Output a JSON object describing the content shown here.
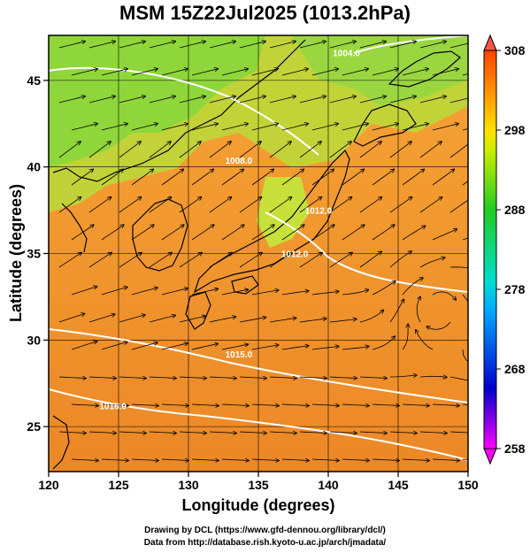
{
  "title": "MSM 15Z22Jul2025 (1013.2hPa)",
  "axes": {
    "xlabel": "Longitude (degrees)",
    "ylabel": "Latitude  (degrees)",
    "xlim": [
      120,
      150
    ],
    "ylim": [
      22.4,
      47.6
    ],
    "xticks": [
      "120",
      "125",
      "130",
      "135",
      "140",
      "145",
      "150"
    ],
    "yticks": [
      "25",
      "30",
      "35",
      "40",
      "45"
    ],
    "grid": true
  },
  "colorbar": {
    "range": [
      258,
      308
    ],
    "ticks": [
      "308",
      "298",
      "288",
      "278",
      "268",
      "258"
    ]
  },
  "contour_labels": [
    {
      "text": "1004.0",
      "lon": 141.3,
      "lat": 46.4
    },
    {
      "text": "1008.0",
      "lon": 133.6,
      "lat": 40.2
    },
    {
      "text": "1012.0",
      "lon": 139.3,
      "lat": 37.3
    },
    {
      "text": "1012.0",
      "lon": 137.6,
      "lat": 34.8
    },
    {
      "text": "1015.0",
      "lon": 133.6,
      "lat": 29.0
    },
    {
      "text": "1016.0",
      "lon": 124.6,
      "lat": 26.0
    }
  ],
  "credits": {
    "line1": "Drawing by DCL (https://www.gfd-dennou.org/library/dcl/)",
    "line2": "Data from http://database.rish.kyoto-u.ac.jp/arch/jmadata/"
  },
  "colors": {
    "ocean_warm": "#f29a2a",
    "ocean_south": "#ee8a22",
    "land_cool": "#8fd63a",
    "contour": "#ffffff",
    "coast": "#000000"
  }
}
